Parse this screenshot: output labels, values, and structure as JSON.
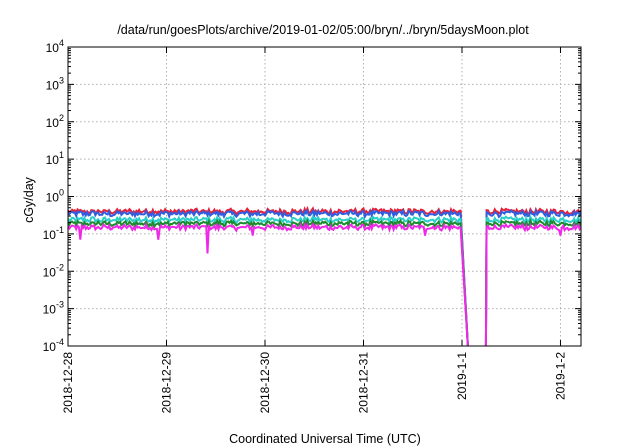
{
  "chart_data": {
    "type": "line",
    "title": "/data/run/goesPlots/archive/2019-01-02/05:00/bryn/../bryn/5daysMoon.plot",
    "xlabel": "Coordinated Universal Time (UTC)",
    "ylabel": "cGy/day",
    "yscale": "log",
    "ylim": [
      0.0001,
      10000
    ],
    "xlim": [
      "2018-12-28T00:00",
      "2019-01-02T05:00"
    ],
    "grid": true,
    "legend": "none",
    "y_ticks": [
      {
        "base": "10",
        "exp": "-4"
      },
      {
        "base": "10",
        "exp": "-3"
      },
      {
        "base": "10",
        "exp": "-2"
      },
      {
        "base": "10",
        "exp": "-1"
      },
      {
        "base": "10",
        "exp": "0"
      },
      {
        "base": "10",
        "exp": "1"
      },
      {
        "base": "10",
        "exp": "2"
      },
      {
        "base": "10",
        "exp": "3"
      },
      {
        "base": "10",
        "exp": "4"
      }
    ],
    "x_ticks": [
      "2018-12-28",
      "2018-12-29",
      "2018-12-30",
      "2018-12-31",
      "2019-1-1",
      "2019-1-2"
    ],
    "x_tick_dates": [
      "2018-12-28T00:00",
      "2018-12-29T00:00",
      "2018-12-30T00:00",
      "2018-12-31T00:00",
      "2019-01-01T00:00",
      "2019-01-02T00:00"
    ],
    "gap": {
      "start": "2019-01-01T00:00",
      "end": "2019-01-01T06:00"
    },
    "series": [
      {
        "color": "#e8203a",
        "base": 0.4
      },
      {
        "color": "#2f5fe0",
        "base": 0.35
      },
      {
        "color": "#2ad0c8",
        "base": 0.24
      },
      {
        "color": "#1e8a2e",
        "base": 0.19
      },
      {
        "color": "#f028e8",
        "base": 0.15
      }
    ],
    "dips": [
      {
        "time": "2018-12-28T03:00",
        "value": 0.07
      },
      {
        "time": "2018-12-28T22:00",
        "value": 0.07
      },
      {
        "time": "2018-12-29T10:00",
        "value": 0.03
      },
      {
        "time": "2018-12-29T21:00",
        "value": 0.09
      },
      {
        "time": "2018-12-31T15:00",
        "value": 0.09
      },
      {
        "time": "2019-01-02T00:00",
        "value": 0.09
      }
    ],
    "axis_color": "#000000",
    "grid_color": "#b0b0b0"
  }
}
